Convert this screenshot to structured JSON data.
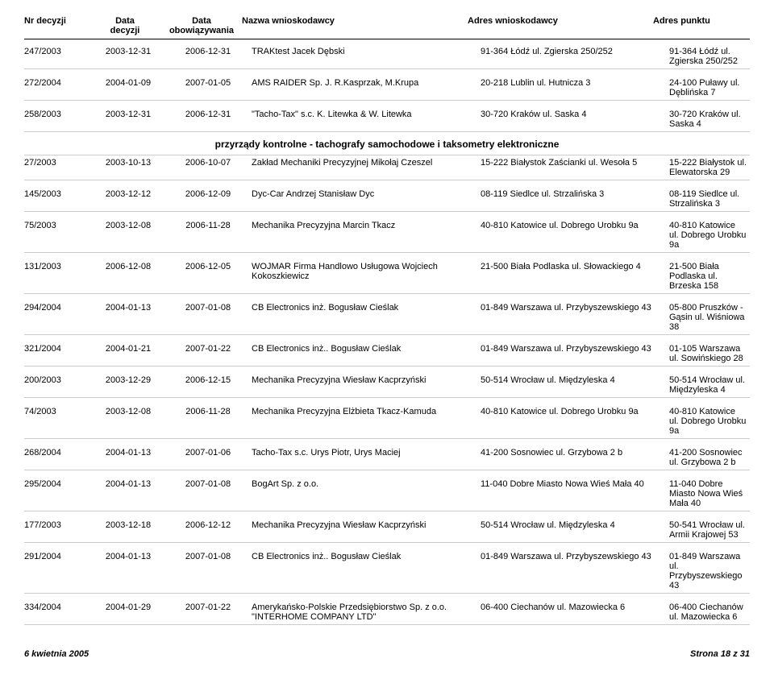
{
  "headers": {
    "nr": "Nr decyzji",
    "data1_line1": "Data",
    "data1_line2": "decyzji",
    "data2_line1": "Data",
    "data2_line2": "obowiązywania",
    "nazwa": "Nazwa wnioskodawcy",
    "adres1": "Adres wnioskodawcy",
    "adres2": "Adres punktu"
  },
  "section1_rows": [
    {
      "nr": "247/2003",
      "d1": "2003-12-31",
      "d2": "2006-12-31",
      "nazwa": "TRAKtest Jacek Dębski",
      "a1": "91-364 Łódź ul. Zgierska 250/252",
      "a2": "91-364 Łódź ul. Zgierska 250/252"
    },
    {
      "nr": "272/2004",
      "d1": "2004-01-09",
      "d2": "2007-01-05",
      "nazwa": "AMS RAIDER Sp. J. R.Kasprzak, M.Krupa",
      "a1": "20-218 Lublin ul. Hutnicza 3",
      "a2": "24-100 Puławy ul. Dęblińska 7"
    },
    {
      "nr": "258/2003",
      "d1": "2003-12-31",
      "d2": "2006-12-31",
      "nazwa": "\"Tacho-Tax\" s.c. K. Litewka & W. Litewka",
      "a1": "30-720 Kraków ul. Saska 4",
      "a2": "30-720 Kraków ul. Saska 4"
    }
  ],
  "section_title": "przyrządy kontrolne - tachografy samochodowe i taksometry elektroniczne",
  "section2_rows": [
    {
      "nr": "27/2003",
      "d1": "2003-10-13",
      "d2": "2006-10-07",
      "nazwa": "Zakład Mechaniki Precyzyjnej Mikołaj Czeszel",
      "a1": "15-222 Białystok Zaścianki ul. Wesoła 5",
      "a2": "15-222 Białystok ul. Elewatorska 29"
    },
    {
      "nr": "145/2003",
      "d1": "2003-12-12",
      "d2": "2006-12-09",
      "nazwa": "Dyc-Car Andrzej Stanisław Dyc",
      "a1": "08-119 Siedlce ul. Strzalińska 3",
      "a2": "08-119 Siedlce ul. Strzalińska 3"
    },
    {
      "nr": "75/2003",
      "d1": "2003-12-08",
      "d2": "2006-11-28",
      "nazwa": "Mechanika Precyzyjna Marcin Tkacz",
      "a1": "40-810 Katowice ul. Dobrego Urobku 9a",
      "a2": "40-810 Katowice ul. Dobrego Urobku 9a"
    },
    {
      "nr": "131/2003",
      "d1": "2006-12-08",
      "d2": "2006-12-05",
      "nazwa": "WOJMAR Firma Handlowo Usługowa Wojciech Kokoszkiewicz",
      "a1": "21-500 Biała Podlaska ul. Słowackiego 4",
      "a2": "21-500 Biała Podlaska ul. Brzeska 158"
    },
    {
      "nr": "294/2004",
      "d1": "2004-01-13",
      "d2": "2007-01-08",
      "nazwa": "CB Electronics inż. Bogusław Cieślak",
      "a1": "01-849 Warszawa ul. Przybyszewskiego 43",
      "a2": "05-800 Pruszków - Gąsin ul. Wiśniowa 38"
    },
    {
      "nr": "321/2004",
      "d1": "2004-01-21",
      "d2": "2007-01-22",
      "nazwa": "CB Electronics inż.. Bogusław Cieślak",
      "a1": "01-849 Warszawa ul. Przybyszewskiego 43",
      "a2": "01-105 Warszawa ul. Sowińskiego 28"
    },
    {
      "nr": "200/2003",
      "d1": "2003-12-29",
      "d2": "2006-12-15",
      "nazwa": "Mechanika Precyzyjna Wiesław Kacprzyński",
      "a1": "50-514 Wrocław ul. Międzyleska 4",
      "a2": "50-514 Wrocław ul. Międzyleska 4"
    },
    {
      "nr": "74/2003",
      "d1": "2003-12-08",
      "d2": "2006-11-28",
      "nazwa": "Mechanika Precyzyjna Elżbieta Tkacz-Kamuda",
      "a1": "40-810 Katowice ul. Dobrego Urobku 9a",
      "a2": "40-810 Katowice ul. Dobrego Urobku 9a"
    },
    {
      "nr": "268/2004",
      "d1": "2004-01-13",
      "d2": "2007-01-06",
      "nazwa": "Tacho-Tax s.c. Urys Piotr, Urys Maciej",
      "a1": "41-200 Sosnowiec ul. Grzybowa 2 b",
      "a2": "41-200 Sosnowiec ul. Grzybowa 2 b"
    },
    {
      "nr": "295/2004",
      "d1": "2004-01-13",
      "d2": "2007-01-08",
      "nazwa": "BogArt Sp. z o.o.",
      "a1": "11-040 Dobre Miasto Nowa Wieś Mała 40",
      "a2": "11-040 Dobre Miasto Nowa Wieś Mała 40"
    },
    {
      "nr": "177/2003",
      "d1": "2003-12-18",
      "d2": "2006-12-12",
      "nazwa": "Mechanika Precyzyjna Wiesław Kacprzyński",
      "a1": "50-514 Wrocław ul. Międzyleska 4",
      "a2": "50-541 Wrocław ul. Armii Krajowej 53"
    },
    {
      "nr": "291/2004",
      "d1": "2004-01-13",
      "d2": "2007-01-08",
      "nazwa": "CB Electronics inż.. Bogusław Cieślak",
      "a1": "01-849 Warszawa ul. Przybyszewskiego 43",
      "a2": "01-849 Warszawa ul. Przybyszewskiego 43"
    },
    {
      "nr": "334/2004",
      "d1": "2004-01-29",
      "d2": "2007-01-22",
      "nazwa": "Amerykańsko-Polskie Przedsiębiorstwo Sp. z o.o. \"INTERHOME COMPANY LTD\"",
      "a1": "06-400 Ciechanów ul. Mazowiecka 6",
      "a2": "06-400 Ciechanów ul. Mazowiecka 6"
    }
  ],
  "footer_left": "6 kwietnia 2005",
  "footer_right": "Strona 18 z 31"
}
